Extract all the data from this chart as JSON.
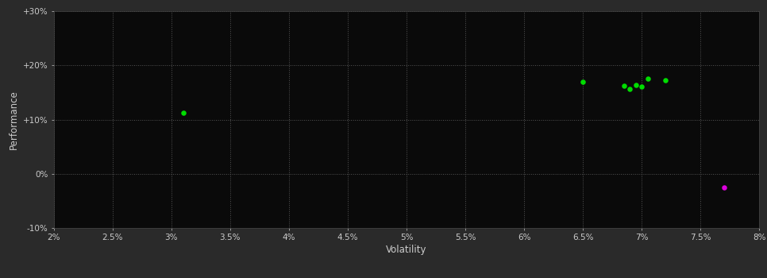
{
  "fig_bg_color": "#2a2a2a",
  "plot_bg_color": "#0a0a0a",
  "grid_color": "#555555",
  "grid_style": ":",
  "grid_linewidth": 0.7,
  "xlabel": "Volatility",
  "ylabel": "Performance",
  "xlim": [
    0.02,
    0.08
  ],
  "ylim": [
    -0.1,
    0.3
  ],
  "xticks": [
    0.02,
    0.025,
    0.03,
    0.035,
    0.04,
    0.045,
    0.05,
    0.055,
    0.06,
    0.065,
    0.07,
    0.075,
    0.08
  ],
  "yticks": [
    -0.1,
    0.0,
    0.1,
    0.2,
    0.3
  ],
  "ytick_labels": [
    "-10%",
    "0%",
    "+10%",
    "+20%",
    "+30%"
  ],
  "xtick_labels": [
    "2%",
    "2.5%",
    "3%",
    "3.5%",
    "4%",
    "4.5%",
    "5%",
    "5.5%",
    "6%",
    "6.5%",
    "7%",
    "7.5%",
    "8%"
  ],
  "green_points": [
    [
      0.031,
      0.112
    ],
    [
      0.065,
      0.17
    ],
    [
      0.0685,
      0.163
    ],
    [
      0.069,
      0.157
    ],
    [
      0.0695,
      0.164
    ],
    [
      0.07,
      0.161
    ],
    [
      0.0705,
      0.175
    ],
    [
      0.072,
      0.172
    ]
  ],
  "magenta_points": [
    [
      0.077,
      -0.025
    ]
  ],
  "green_color": "#00dd00",
  "magenta_color": "#dd00dd",
  "marker_size": 22,
  "tick_color": "#cccccc",
  "label_color": "#cccccc",
  "tick_fontsize": 7.5,
  "label_fontsize": 8.5,
  "spine_color": "#444444"
}
